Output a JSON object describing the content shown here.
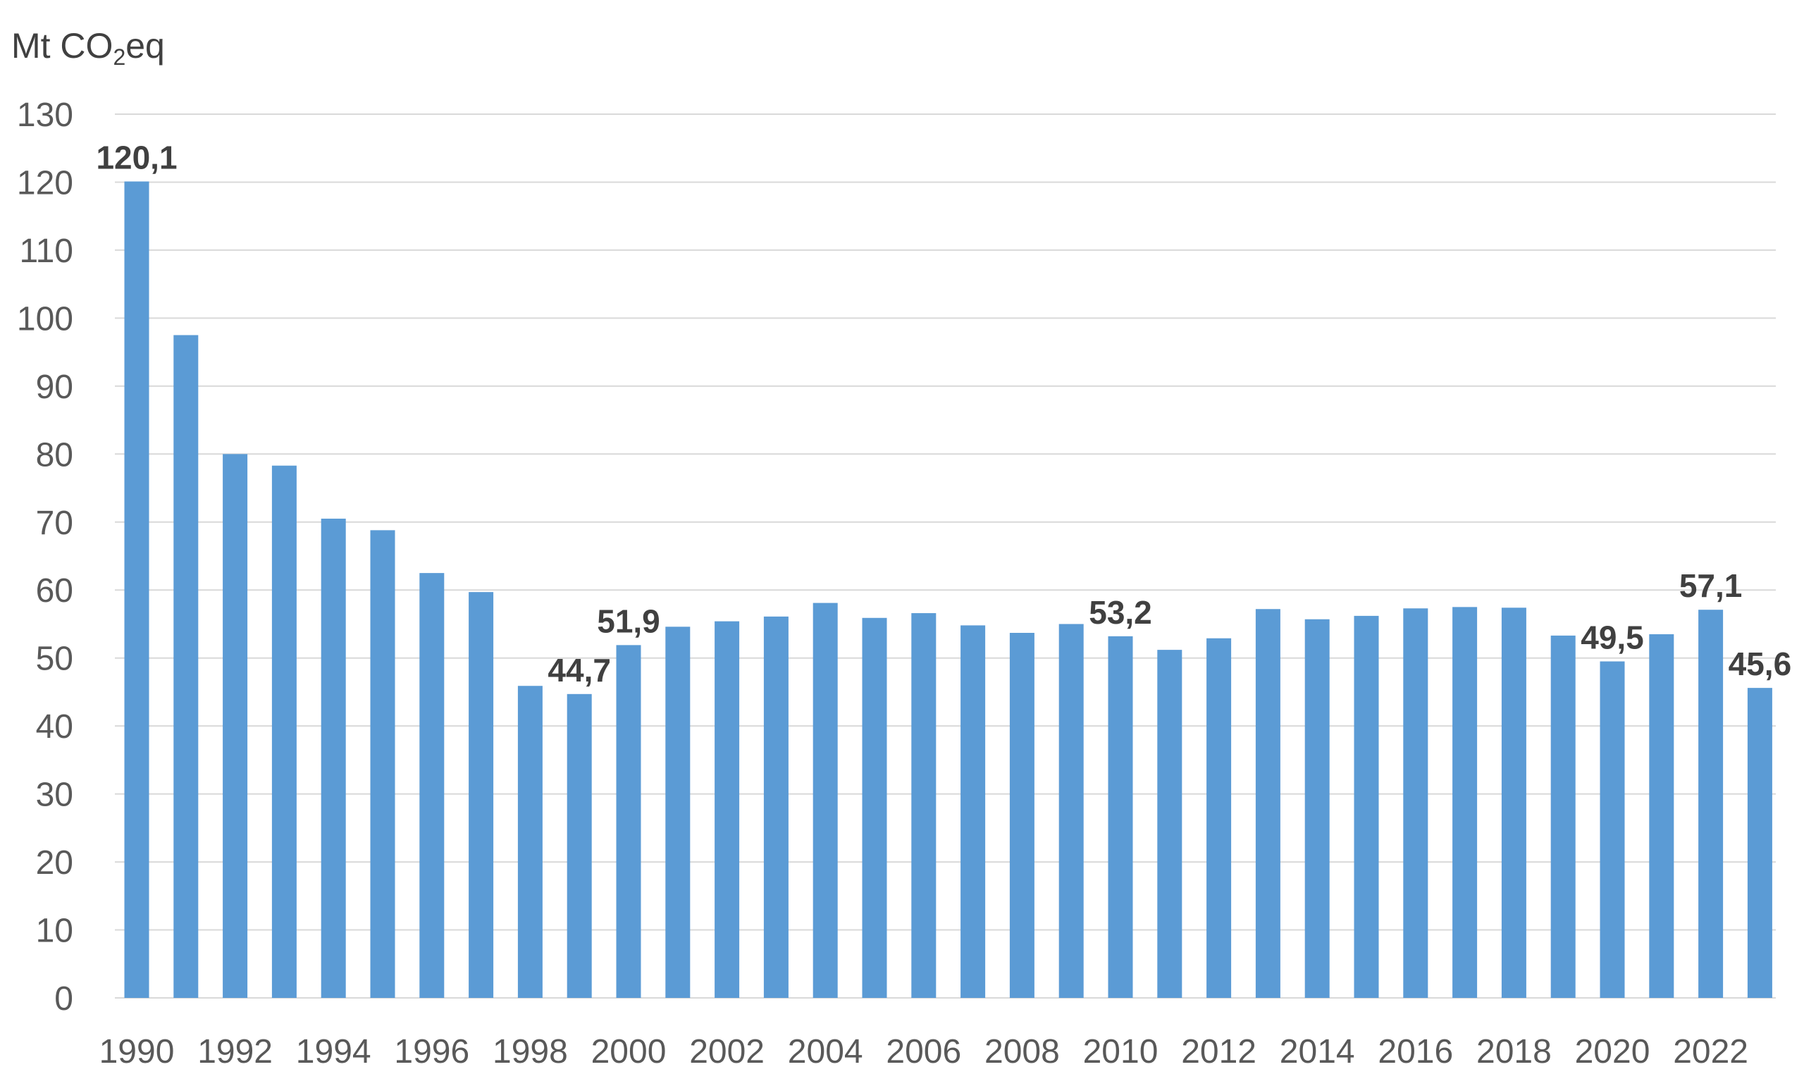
{
  "chart_data": {
    "type": "bar",
    "unit_label": {
      "prefix": "Mt CO",
      "subscript": "2",
      "suffix": "eq"
    },
    "categories": [
      "1990",
      "1991",
      "1992",
      "1993",
      "1994",
      "1995",
      "1996",
      "1997",
      "1998",
      "1999",
      "2000",
      "2001",
      "2002",
      "2003",
      "2004",
      "2005",
      "2006",
      "2007",
      "2008",
      "2009",
      "2010",
      "2011",
      "2012",
      "2013",
      "2014",
      "2015",
      "2016",
      "2017",
      "2018",
      "2019",
      "2020",
      "2021",
      "2022",
      "2023"
    ],
    "x_tick_labels": [
      "1990",
      "1992",
      "1994",
      "1996",
      "1998",
      "2000",
      "2002",
      "2004",
      "2006",
      "2008",
      "2010",
      "2012",
      "2014",
      "2016",
      "2018",
      "2020",
      "2022"
    ],
    "values": [
      120.1,
      97.5,
      80.0,
      78.3,
      70.5,
      68.8,
      62.5,
      59.7,
      45.9,
      44.7,
      51.9,
      54.6,
      55.4,
      56.1,
      58.1,
      55.9,
      56.6,
      54.8,
      53.7,
      55.0,
      53.2,
      51.2,
      52.9,
      57.2,
      55.7,
      56.2,
      57.3,
      57.5,
      57.4,
      53.3,
      49.5,
      53.5,
      57.1,
      45.6
    ],
    "data_labels": [
      {
        "index": 0,
        "text": "120,1"
      },
      {
        "index": 9,
        "text": "44,7"
      },
      {
        "index": 10,
        "text": "51,9"
      },
      {
        "index": 20,
        "text": "53,2"
      },
      {
        "index": 30,
        "text": "49,5"
      },
      {
        "index": 32,
        "text": "57,1"
      },
      {
        "index": 33,
        "text": "45,6"
      }
    ],
    "ylim": [
      0,
      130
    ],
    "y_ticks": [
      0,
      10,
      20,
      30,
      40,
      50,
      60,
      70,
      80,
      90,
      100,
      110,
      120,
      130
    ],
    "grid": true,
    "colors": {
      "bar": "#5B9BD5",
      "grid": "#D9D9D9",
      "text": "#595959",
      "label": "#404040"
    }
  }
}
